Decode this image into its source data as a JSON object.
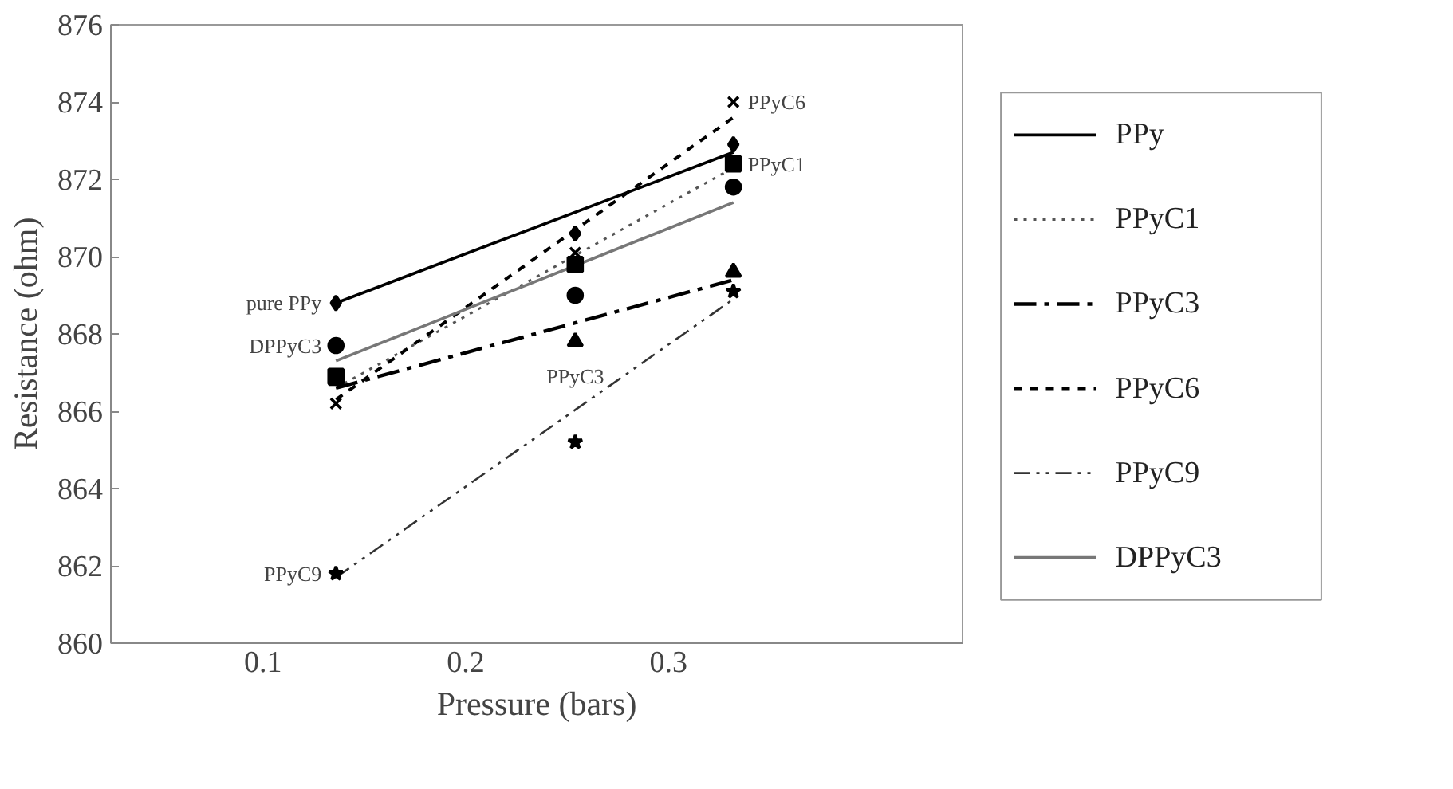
{
  "chart_data": {
    "type": "line",
    "xlabel": "Pressure (bars)",
    "ylabel": "Resistance (ohm)",
    "xlim": [
      0.025,
      0.445
    ],
    "ylim": [
      860,
      876
    ],
    "xticks": [
      0.1,
      0.2,
      0.3
    ],
    "yticks": [
      860,
      862,
      864,
      866,
      868,
      870,
      872,
      874,
      876
    ],
    "grid": false,
    "legend": "right",
    "series": [
      {
        "name": "PPy",
        "color": "#000000",
        "line_style": "solid",
        "marker": "none",
        "x": [
          0.136,
          0.332
        ],
        "values": [
          868.8,
          872.7
        ]
      },
      {
        "name": "PPyC1",
        "color": "#555555",
        "line_style": "dotted",
        "marker": "none",
        "x": [
          0.136,
          0.332
        ],
        "values": [
          866.6,
          872.3
        ]
      },
      {
        "name": "PPyC3",
        "color": "#000000",
        "line_style": "dashdot",
        "marker": "none",
        "x": [
          0.136,
          0.332
        ],
        "values": [
          866.6,
          869.4
        ]
      },
      {
        "name": "PPyC6",
        "color": "#000000",
        "line_style": "dashed",
        "marker": "none",
        "x": [
          0.136,
          0.332
        ],
        "values": [
          866.3,
          873.6
        ]
      },
      {
        "name": "PPyC9",
        "color": "#333333",
        "line_style": "dashdotdot",
        "marker": "none",
        "x": [
          0.136,
          0.332
        ],
        "values": [
          861.7,
          868.9
        ]
      },
      {
        "name": "DPPyC3",
        "color": "#777777",
        "line_style": "solid",
        "marker": "none",
        "x": [
          0.136,
          0.332
        ],
        "values": [
          867.3,
          871.4
        ]
      },
      {
        "type": "scatter",
        "color": "#000000",
        "marker": "diamond",
        "x": [
          0.136,
          0.254,
          0.332
        ],
        "values": [
          868.8,
          870.6,
          872.9
        ]
      },
      {
        "type": "scatter",
        "color": "#000000",
        "marker": "square",
        "x": [
          0.136,
          0.254,
          0.332
        ],
        "values": [
          866.9,
          869.8,
          872.4
        ]
      },
      {
        "type": "scatter",
        "color": "#000000",
        "marker": "triangle",
        "x": [
          0.136,
          0.254,
          0.332
        ],
        "values": [
          866.8,
          867.8,
          869.6
        ]
      },
      {
        "type": "scatter",
        "color": "#000000",
        "marker": "cross",
        "x": [
          0.136,
          0.254,
          0.332
        ],
        "values": [
          866.2,
          870.1,
          874.0
        ]
      },
      {
        "type": "scatter",
        "color": "#000000",
        "marker": "star",
        "x": [
          0.136,
          0.254,
          0.332
        ],
        "values": [
          861.8,
          865.2,
          869.1
        ]
      },
      {
        "type": "scatter",
        "color": "#000000",
        "marker": "circle",
        "x": [
          0.136,
          0.254,
          0.332
        ],
        "values": [
          867.7,
          869.0,
          871.8
        ]
      }
    ],
    "annotations": [
      {
        "text": "pure PPy",
        "x": 0.136,
        "y": 868.8
      },
      {
        "text": "DPPyC3",
        "x": 0.136,
        "y": 867.7
      },
      {
        "text": "PPyC9",
        "x": 0.136,
        "y": 861.8
      },
      {
        "text": "PPyC3",
        "x": 0.254,
        "y": 867.8
      },
      {
        "text": "PPyC6",
        "x": 0.332,
        "y": 874.0
      },
      {
        "text": "PPyC1",
        "x": 0.332,
        "y": 872.4
      }
    ]
  }
}
